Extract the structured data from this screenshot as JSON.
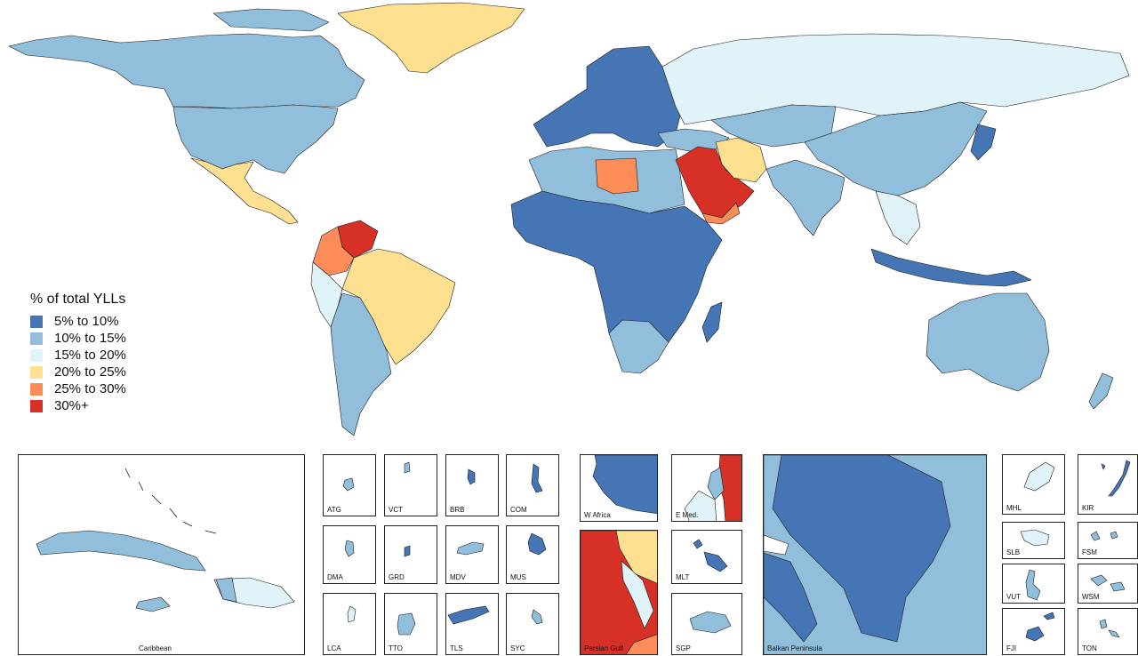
{
  "legend": {
    "title": "% of total YLLs",
    "items": [
      {
        "label": "5% to 10%",
        "color": "#4575b4"
      },
      {
        "label": "10% to 15%",
        "color": "#91bfdb"
      },
      {
        "label": "15% to 20%",
        "color": "#e0f3f8"
      },
      {
        "label": "20% to 25%",
        "color": "#fee090"
      },
      {
        "label": "25% to 30%",
        "color": "#fc8d59"
      },
      {
        "label": "30%+",
        "color": "#d73027"
      }
    ]
  },
  "insets": {
    "caribbean": "Caribbean",
    "atg": "ATG",
    "vct": "VCT",
    "brb": "BRB",
    "com": "COM",
    "dma": "DMA",
    "grd": "GRD",
    "mdv": "MDV",
    "mus": "MUS",
    "lca": "LCA",
    "tto": "TTO",
    "tls": "TLS",
    "syc": "SYC",
    "w_africa": "W Africa",
    "e_med": "E Med.",
    "persian_gulf": "Persian Gulf",
    "mlt": "MLT",
    "sgp": "SGP",
    "balkan": "Balkan Peninsula",
    "mhl": "MHL",
    "kir": "KIR",
    "slb": "SLB",
    "fsm": "FSM",
    "vut": "VUT",
    "wsm": "WSM",
    "fji": "FJI",
    "ton": "TON"
  }
}
